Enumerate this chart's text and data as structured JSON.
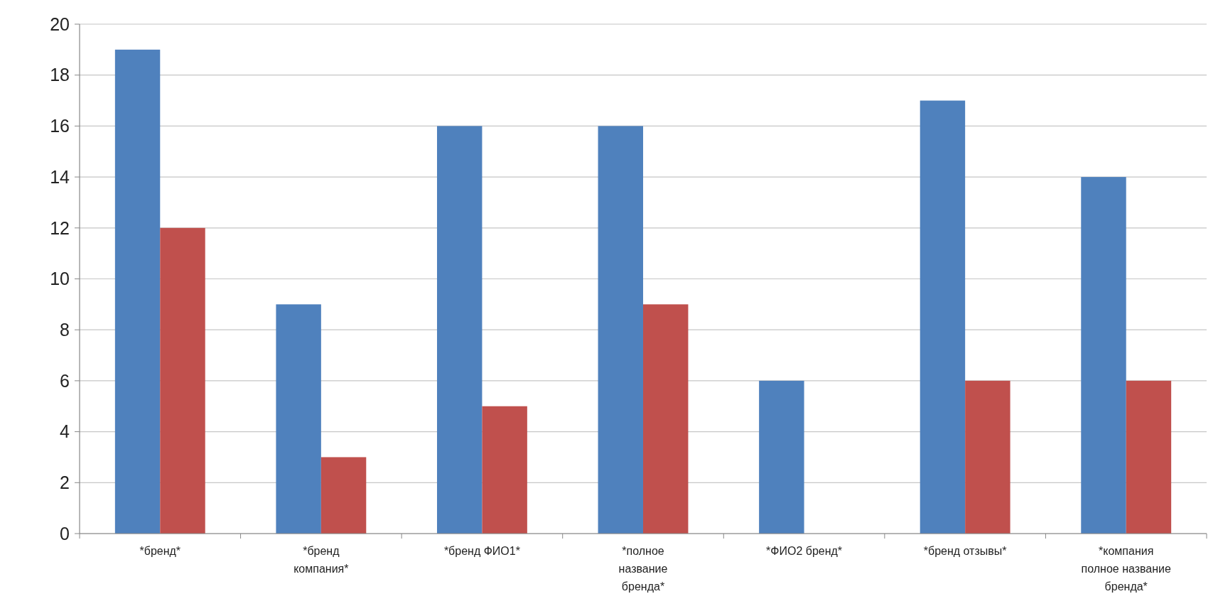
{
  "chart_data": {
    "type": "bar",
    "categories": [
      "*бренд*",
      "*бренд компания*",
      "*бренд ФИО1*",
      "*полное название бренда*",
      "*ФИО2 бренд*",
      "*бренд отзывы*",
      "*компания полное название бренда*"
    ],
    "series": [
      {
        "color": "#4f81bd",
        "values": [
          19,
          9,
          16,
          16,
          6,
          17,
          14
        ]
      },
      {
        "color": "#c0504d",
        "values": [
          12,
          3,
          5,
          9,
          null,
          6,
          6
        ]
      }
    ],
    "ylim": [
      0,
      20
    ],
    "yticks": [
      0,
      2,
      4,
      6,
      8,
      10,
      12,
      14,
      16,
      18,
      20
    ],
    "grid": "y"
  }
}
